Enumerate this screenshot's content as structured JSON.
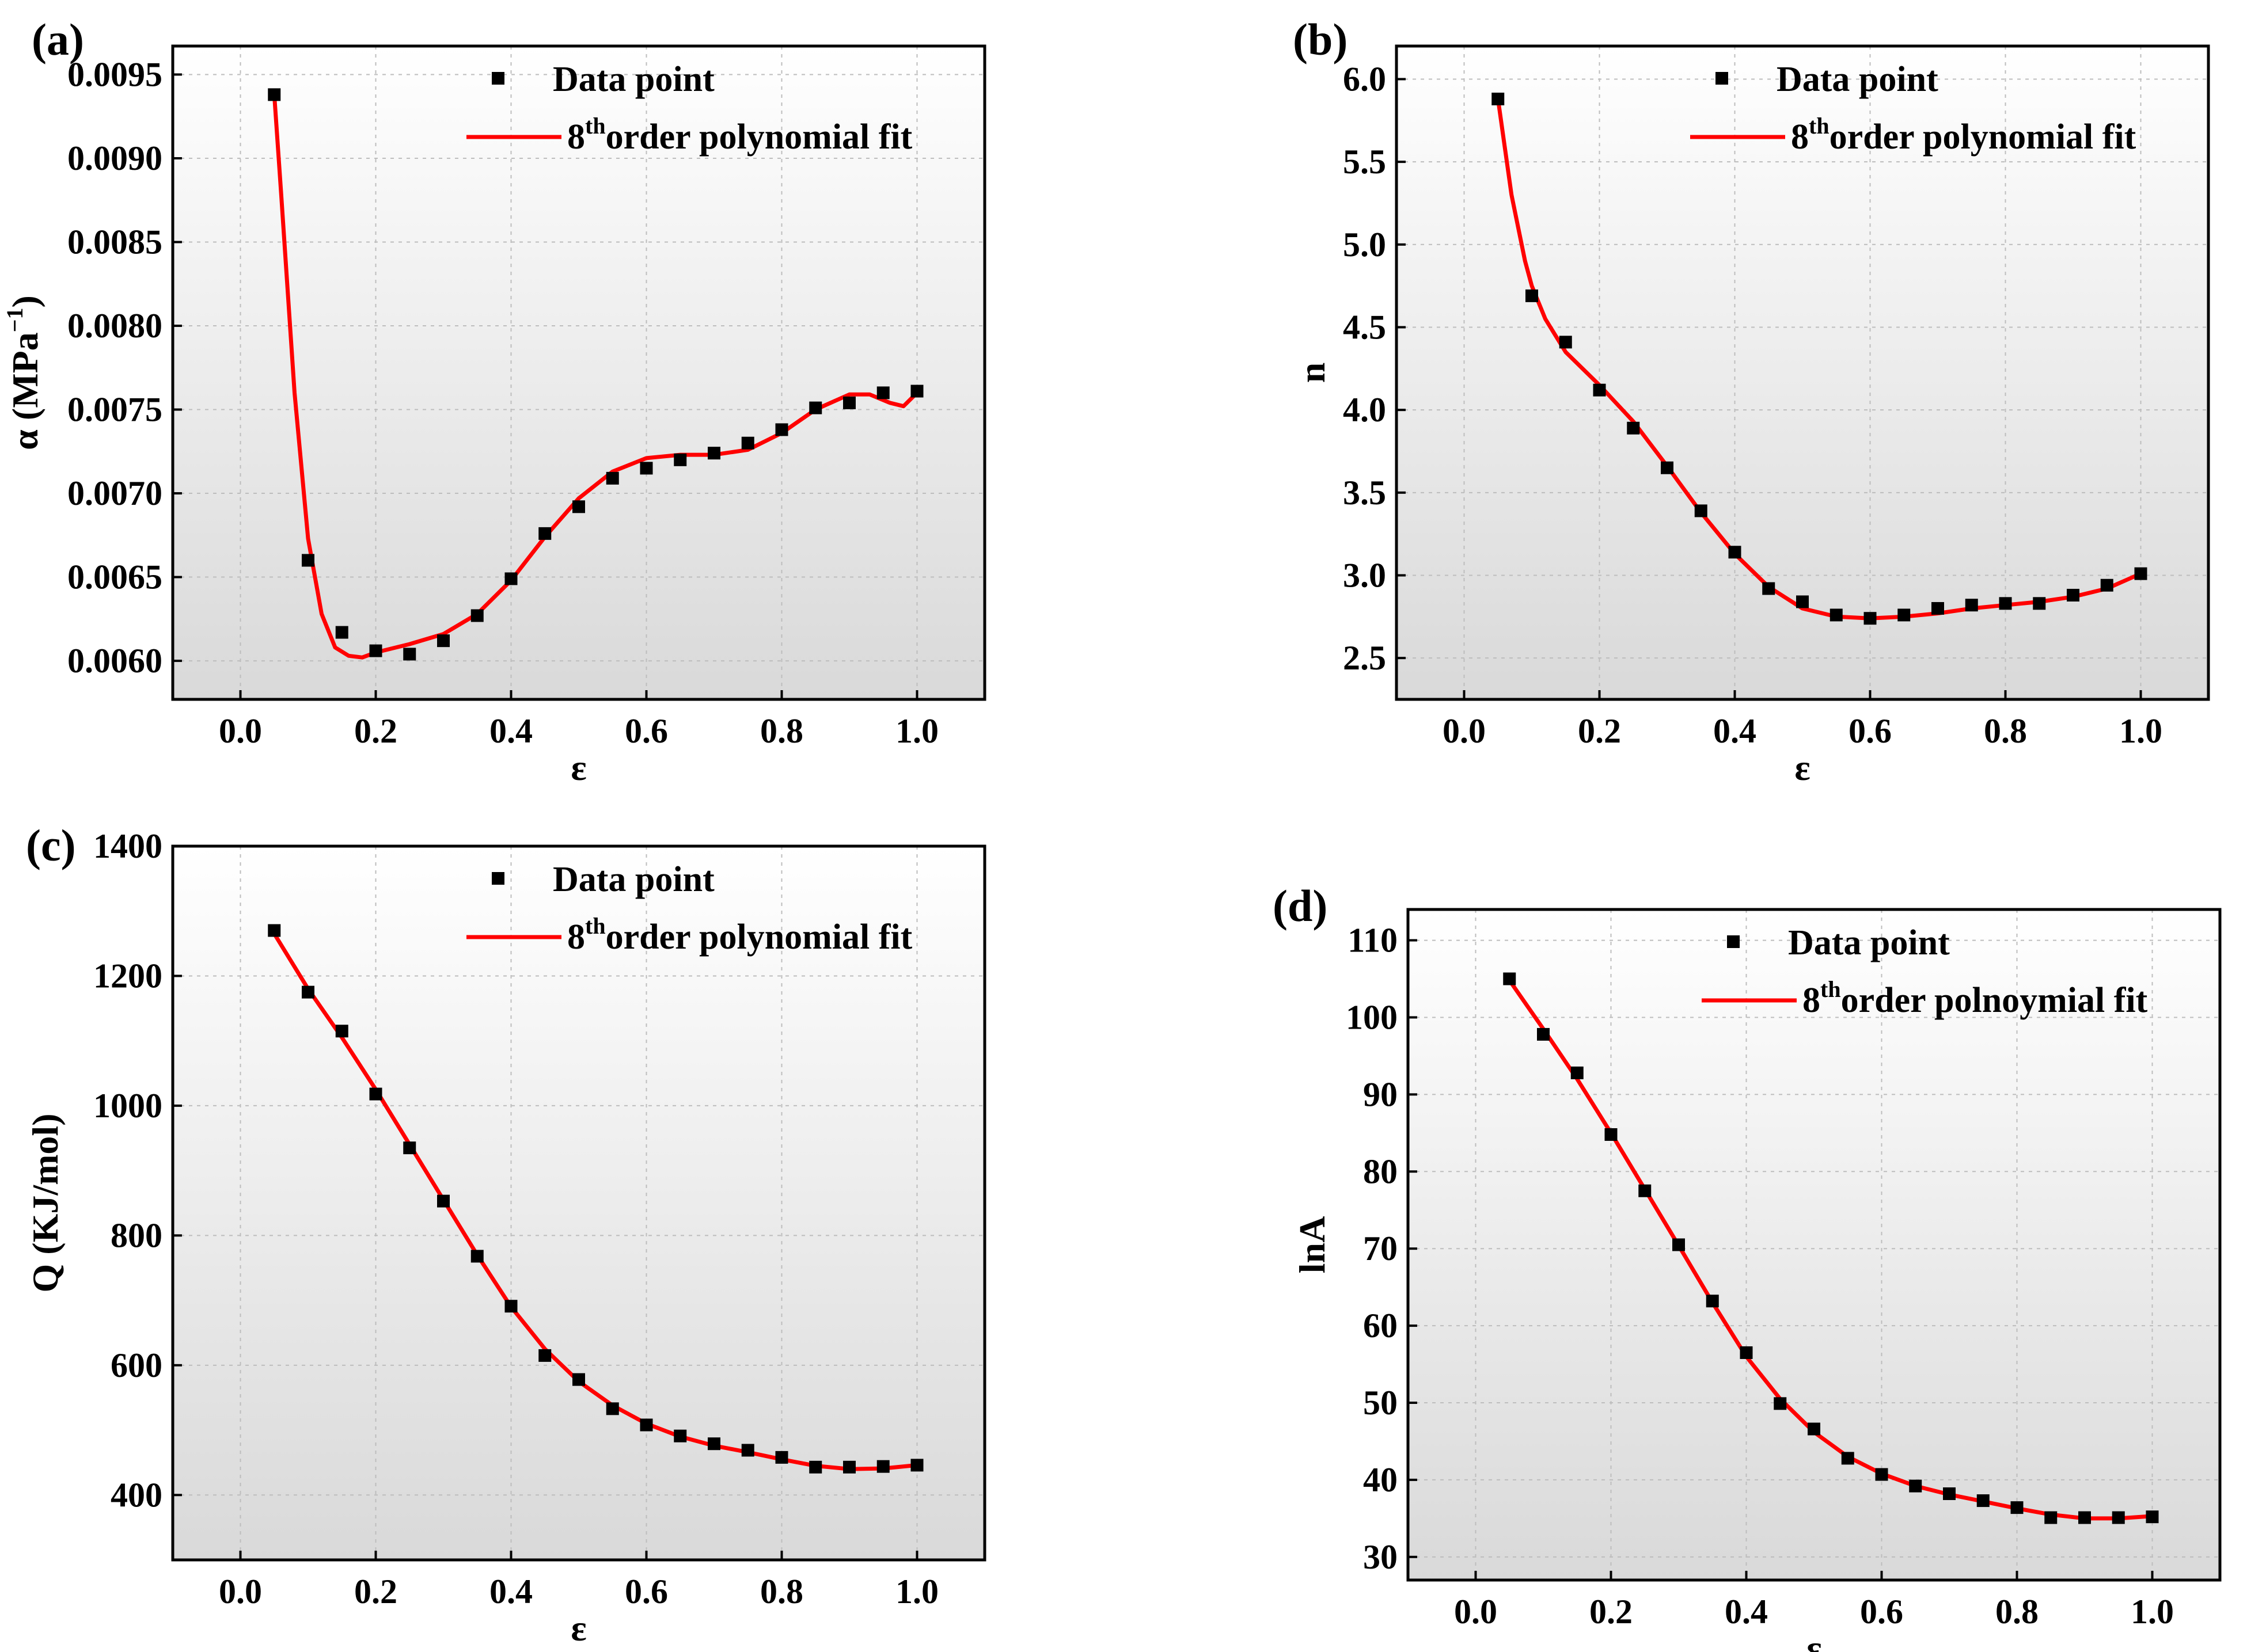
{
  "chart_data": [
    {
      "type": "scatter",
      "panel_label": "(a)",
      "title": "",
      "xlabel": "ε",
      "ylabel_main": "α (MPa",
      "ylabel_sup": "−1",
      "ylabel_end": ")",
      "xlim": [
        -0.1,
        1.1
      ],
      "ylim": [
        0.00577,
        0.00967
      ],
      "xticks": [
        0.0,
        0.2,
        0.4,
        0.6,
        0.8,
        1.0
      ],
      "xtick_labels": [
        "0.0",
        "0.2",
        "0.4",
        "0.6",
        "0.8",
        "1.0"
      ],
      "yticks": [
        0.006,
        0.0065,
        0.007,
        0.0075,
        0.008,
        0.0085,
        0.009,
        0.0095
      ],
      "ytick_labels": [
        "0.0060",
        "0.0065",
        "0.0070",
        "0.0075",
        "0.0080",
        "0.0085",
        "0.0090",
        "0.0095"
      ],
      "grid": true,
      "legend_position": "top-right",
      "legend": {
        "data_label": "Data point",
        "fit_prefix": "8",
        "fit_sup": "th",
        "fit_rest": "order polynomial fit"
      },
      "series": [
        {
          "name": "Data point",
          "x": [
            0.05,
            0.1,
            0.15,
            0.2,
            0.25,
            0.3,
            0.35,
            0.4,
            0.45,
            0.5,
            0.55,
            0.6,
            0.65,
            0.7,
            0.75,
            0.8,
            0.85,
            0.9,
            0.95,
            1.0
          ],
          "y": [
            0.00938,
            0.0066,
            0.00617,
            0.00606,
            0.00604,
            0.00612,
            0.00627,
            0.00649,
            0.00676,
            0.00692,
            0.00709,
            0.00715,
            0.0072,
            0.00724,
            0.0073,
            0.00738,
            0.00751,
            0.00754,
            0.0076,
            0.00761
          ]
        },
        {
          "name": "8th order polynomial fit",
          "x": [
            0.05,
            0.06,
            0.08,
            0.1,
            0.12,
            0.14,
            0.16,
            0.18,
            0.2,
            0.25,
            0.3,
            0.35,
            0.4,
            0.45,
            0.5,
            0.55,
            0.6,
            0.65,
            0.7,
            0.75,
            0.8,
            0.85,
            0.9,
            0.93,
            0.96,
            0.98,
            1.0
          ],
          "y": [
            0.00938,
            0.0088,
            0.0076,
            0.00673,
            0.00628,
            0.00608,
            0.00603,
            0.00602,
            0.00605,
            0.0061,
            0.00616,
            0.00628,
            0.00648,
            0.00674,
            0.00697,
            0.00713,
            0.00721,
            0.00723,
            0.00723,
            0.00726,
            0.00736,
            0.0075,
            0.00759,
            0.00759,
            0.00754,
            0.00752,
            0.0076
          ]
        }
      ]
    },
    {
      "type": "scatter",
      "panel_label": "(b)",
      "title": "",
      "xlabel": "ε",
      "ylabel_main": "n",
      "xlim": [
        -0.1,
        1.1
      ],
      "ylim": [
        2.25,
        6.2
      ],
      "xticks": [
        0.0,
        0.2,
        0.4,
        0.6,
        0.8,
        1.0
      ],
      "xtick_labels": [
        "0.0",
        "0.2",
        "0.4",
        "0.6",
        "0.8",
        "1.0"
      ],
      "yticks": [
        2.5,
        3.0,
        3.5,
        4.0,
        4.5,
        5.0,
        5.5,
        6.0
      ],
      "ytick_labels": [
        "2.5",
        "3.0",
        "3.5",
        "4.0",
        "4.5",
        "5.0",
        "5.5",
        "6.0"
      ],
      "grid": true,
      "legend_position": "top-right",
      "legend": {
        "data_label": "Data point",
        "fit_prefix": "8",
        "fit_sup": "th",
        "fit_rest": "order polynomial fit"
      },
      "series": [
        {
          "name": "Data point",
          "x": [
            0.05,
            0.1,
            0.15,
            0.2,
            0.25,
            0.3,
            0.35,
            0.4,
            0.45,
            0.5,
            0.55,
            0.6,
            0.65,
            0.7,
            0.75,
            0.8,
            0.85,
            0.9,
            0.95,
            1.0
          ],
          "y": [
            5.88,
            4.69,
            4.41,
            4.12,
            3.89,
            3.65,
            3.39,
            3.14,
            2.92,
            2.84,
            2.76,
            2.74,
            2.76,
            2.8,
            2.82,
            2.83,
            2.83,
            2.88,
            2.94,
            3.01
          ]
        },
        {
          "name": "8th order polynomial fit",
          "x": [
            0.05,
            0.07,
            0.09,
            0.1,
            0.12,
            0.15,
            0.2,
            0.25,
            0.3,
            0.35,
            0.4,
            0.45,
            0.5,
            0.55,
            0.6,
            0.65,
            0.7,
            0.75,
            0.8,
            0.85,
            0.9,
            0.95,
            1.0
          ],
          "y": [
            5.88,
            5.3,
            4.9,
            4.75,
            4.55,
            4.35,
            4.15,
            3.93,
            3.66,
            3.38,
            3.13,
            2.93,
            2.8,
            2.75,
            2.74,
            2.75,
            2.77,
            2.8,
            2.82,
            2.84,
            2.87,
            2.92,
            3.01
          ]
        }
      ]
    },
    {
      "type": "scatter",
      "panel_label": "(c)",
      "title": "",
      "xlabel": "ε",
      "ylabel_main": "Q (KJ/mol)",
      "xlim": [
        -0.1,
        1.1
      ],
      "ylim": [
        300,
        1400
      ],
      "xticks": [
        0.0,
        0.2,
        0.4,
        0.6,
        0.8,
        1.0
      ],
      "xtick_labels": [
        "0.0",
        "0.2",
        "0.4",
        "0.6",
        "0.8",
        "1.0"
      ],
      "yticks": [
        400,
        600,
        800,
        1000,
        1200,
        1400
      ],
      "ytick_labels": [
        "400",
        "600",
        "800",
        "1000",
        "1200",
        "1400"
      ],
      "grid": true,
      "legend_position": "top-right",
      "legend": {
        "data_label": "Data point",
        "fit_prefix": "8",
        "fit_sup": "th",
        "fit_rest": "order polynomial fit"
      },
      "series": [
        {
          "name": "Data point",
          "x": [
            0.05,
            0.1,
            0.15,
            0.2,
            0.25,
            0.3,
            0.35,
            0.4,
            0.45,
            0.5,
            0.55,
            0.6,
            0.65,
            0.7,
            0.75,
            0.8,
            0.85,
            0.9,
            0.95,
            1.0
          ],
          "y": [
            1270,
            1175,
            1115,
            1018,
            935,
            853,
            768,
            691,
            615,
            578,
            533,
            508,
            491,
            479,
            469,
            458,
            443,
            443,
            444,
            446
          ]
        },
        {
          "name": "8th order polynomial fit",
          "x": [
            0.05,
            0.1,
            0.15,
            0.2,
            0.25,
            0.3,
            0.35,
            0.4,
            0.45,
            0.5,
            0.55,
            0.6,
            0.65,
            0.7,
            0.75,
            0.8,
            0.85,
            0.9,
            0.95,
            1.0
          ],
          "y": [
            1265,
            1180,
            1105,
            1025,
            940,
            855,
            770,
            690,
            625,
            575,
            538,
            510,
            490,
            476,
            466,
            455,
            445,
            440,
            441,
            446
          ]
        }
      ]
    },
    {
      "type": "scatter",
      "panel_label": "(d)",
      "title": "",
      "xlabel": "ε",
      "ylabel_main": "lnA",
      "xlim": [
        -0.1,
        1.1
      ],
      "ylim": [
        27,
        114
      ],
      "xticks": [
        0.0,
        0.2,
        0.4,
        0.6,
        0.8,
        1.0
      ],
      "xtick_labels": [
        "0.0",
        "0.2",
        "0.4",
        "0.6",
        "0.8",
        "1.0"
      ],
      "yticks": [
        30,
        40,
        50,
        60,
        70,
        80,
        90,
        100,
        110
      ],
      "ytick_labels": [
        "30",
        "40",
        "50",
        "60",
        "70",
        "80",
        "90",
        "100",
        "110"
      ],
      "grid": true,
      "legend_position": "top-right",
      "legend": {
        "data_label": "Data point",
        "fit_prefix": "8",
        "fit_sup": "th",
        "fit_rest": "order polnoymial fit"
      },
      "series": [
        {
          "name": "Data point",
          "x": [
            0.05,
            0.1,
            0.15,
            0.2,
            0.25,
            0.3,
            0.35,
            0.4,
            0.45,
            0.5,
            0.55,
            0.6,
            0.65,
            0.7,
            0.75,
            0.8,
            0.85,
            0.9,
            0.95,
            1.0
          ],
          "y": [
            105.0,
            97.8,
            92.8,
            84.8,
            77.5,
            70.5,
            63.2,
            56.5,
            49.9,
            46.6,
            42.8,
            40.7,
            39.2,
            38.2,
            37.3,
            36.4,
            35.1,
            35.1,
            35.1,
            35.2
          ]
        },
        {
          "name": "8th order polynomial fit",
          "x": [
            0.05,
            0.1,
            0.15,
            0.2,
            0.25,
            0.3,
            0.35,
            0.4,
            0.45,
            0.5,
            0.55,
            0.6,
            0.65,
            0.7,
            0.75,
            0.8,
            0.85,
            0.9,
            0.95,
            1.0
          ],
          "y": [
            104.8,
            98.5,
            92.0,
            85.0,
            77.7,
            70.4,
            63.0,
            56.0,
            50.5,
            46.2,
            43.0,
            40.8,
            39.2,
            38.1,
            37.2,
            36.3,
            35.5,
            35.0,
            35.0,
            35.3
          ]
        }
      ]
    }
  ]
}
